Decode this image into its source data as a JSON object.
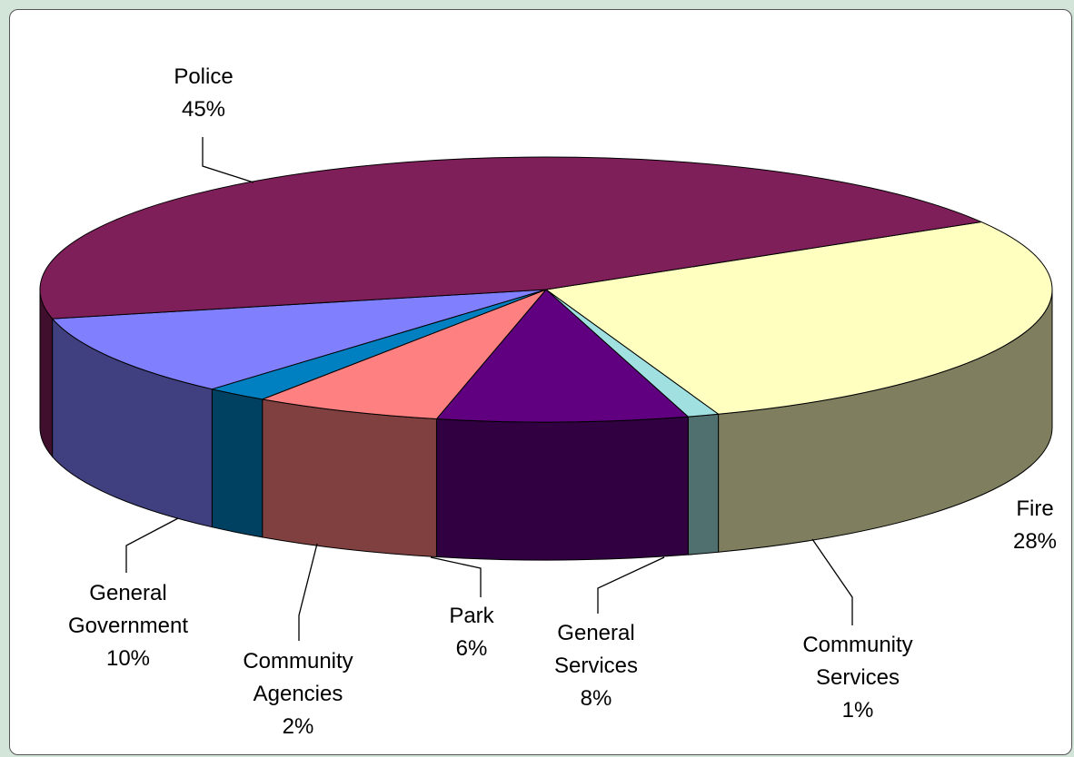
{
  "chart_data": {
    "type": "pie",
    "title": "",
    "slices": [
      {
        "label": [
          "Fire"
        ],
        "percent_label": "28%",
        "value": 28,
        "color": "#ffffc0",
        "side_color": "#7f7f60"
      },
      {
        "label": [
          "Community",
          "Services"
        ],
        "percent_label": "1%",
        "value": 1,
        "color": "#a0e0e0",
        "side_color": "#507070"
      },
      {
        "label": [
          "General",
          "Services"
        ],
        "percent_label": "8%",
        "value": 8,
        "color": "#600080",
        "side_color": "#300040"
      },
      {
        "label": [
          "Park"
        ],
        "percent_label": "6%",
        "value": 6,
        "color": "#ff8080",
        "side_color": "#804040"
      },
      {
        "label": [
          "Community",
          "Agencies"
        ],
        "percent_label": "2%",
        "value": 2,
        "color": "#0080c0",
        "side_color": "#004060"
      },
      {
        "label": [
          "General",
          "Government"
        ],
        "percent_label": "10%",
        "value": 10,
        "color": "#8080ff",
        "side_color": "#404080"
      },
      {
        "label": [
          "Police"
        ],
        "percent_label": "45%",
        "value": 45,
        "color": "#7f1f5a",
        "side_color": "#400f2d"
      }
    ],
    "legend": "none",
    "labels": "outside-with-leader-lines"
  }
}
